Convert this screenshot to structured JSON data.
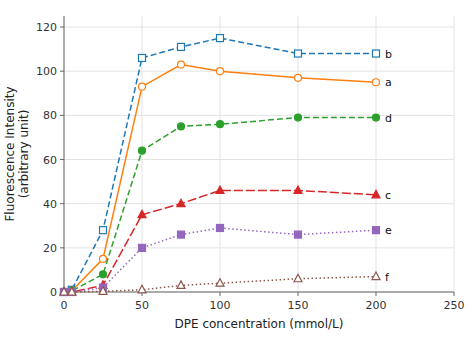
{
  "chart_data": {
    "type": "line",
    "x_label": "DPE concentration (mmol/L)",
    "y_label": "Fluorescence Intensity\n(arbitrary unit)",
    "x": [
      0,
      5,
      25,
      50,
      75,
      100,
      150,
      200
    ],
    "series": [
      {
        "name": "b",
        "color": "#1f77b4",
        "marker": "square-open",
        "line_style": "dashed",
        "values": [
          0,
          1,
          28,
          106,
          111,
          115,
          108,
          108
        ]
      },
      {
        "name": "a",
        "color": "#ff7f0e",
        "marker": "circle-open",
        "line_style": "solid",
        "values": [
          0,
          0.5,
          15,
          93,
          103,
          100,
          97,
          95
        ]
      },
      {
        "name": "d",
        "color": "#2ca02c",
        "marker": "circle",
        "line_style": "dashed",
        "values": [
          0,
          0.5,
          8,
          64,
          75,
          76,
          79,
          79
        ]
      },
      {
        "name": "c",
        "color": "#d62728",
        "marker": "triangle",
        "line_style": "longdash",
        "values": [
          0,
          0,
          3,
          35,
          40,
          46,
          46,
          44
        ]
      },
      {
        "name": "e",
        "color": "#9467bd",
        "marker": "square",
        "line_style": "dotted",
        "values": [
          0,
          0,
          2,
          20,
          26,
          29,
          26,
          28
        ]
      },
      {
        "name": "f",
        "color": "#8c564b",
        "marker": "triangle-open",
        "line_style": "dotted",
        "values": [
          0,
          0,
          0.3,
          1,
          3,
          4,
          6,
          7
        ]
      }
    ],
    "xlim": [
      0,
      250
    ],
    "ylim": [
      0,
      125
    ],
    "xticks": [
      0,
      50,
      100,
      150,
      200,
      250
    ],
    "yticks": [
      0,
      20,
      40,
      60,
      80,
      100,
      120
    ]
  }
}
